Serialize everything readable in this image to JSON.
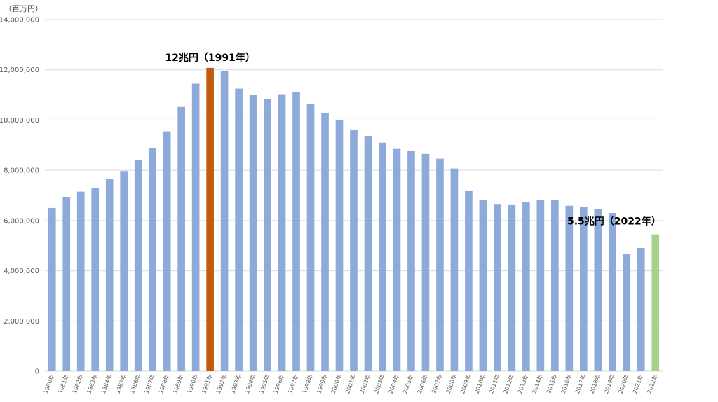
{
  "chart_data": {
    "type": "bar",
    "unit_label": "（百万円）",
    "categories": [
      "1980年",
      "1981年",
      "1982年",
      "1983年",
      "1984年",
      "1985年",
      "1986年",
      "1987年",
      "1988年",
      "1989年",
      "1990年",
      "1991年",
      "1992年",
      "1993年",
      "1994年",
      "1995年",
      "1996年",
      "1997年",
      "1998年",
      "1999年",
      "2000年",
      "2001年",
      "2002年",
      "2003年",
      "2004年",
      "2005年",
      "2006年",
      "2007年",
      "2008年",
      "2009年",
      "2010年",
      "2011年",
      "2012年",
      "2013年",
      "2014年",
      "2015年",
      "2016年",
      "2017年",
      "2018年",
      "2019年",
      "2020年",
      "2021年",
      "2022年"
    ],
    "values": [
      6500000,
      6920000,
      7150000,
      7300000,
      7640000,
      7970000,
      8400000,
      8880000,
      9550000,
      10520000,
      11450000,
      12080000,
      11940000,
      11250000,
      11010000,
      10820000,
      11030000,
      11100000,
      10640000,
      10270000,
      10000000,
      9610000,
      9370000,
      9100000,
      8850000,
      8760000,
      8650000,
      8460000,
      8070000,
      7170000,
      6830000,
      6660000,
      6640000,
      6720000,
      6830000,
      6830000,
      6590000,
      6550000,
      6450000,
      6300000,
      4680000,
      4910000,
      5450000
    ],
    "ylim": [
      0,
      14000000
    ],
    "yticks": [
      0,
      2000000,
      4000000,
      6000000,
      8000000,
      10000000,
      12000000,
      14000000
    ],
    "ytick_labels": [
      "0",
      "2,000,000",
      "4,000,000",
      "6,000,000",
      "8,000,000",
      "10,000,000",
      "12,000,000",
      "14,000,000"
    ],
    "grid": true,
    "colors": {
      "default": "#8eaadb",
      "peak": "#c55a11",
      "latest": "#a9d18e"
    },
    "annotations": [
      {
        "text": "12兆円（1991年）",
        "category": "1991年"
      },
      {
        "text": "5.5兆円（2022年）",
        "category": "2022年"
      }
    ]
  }
}
